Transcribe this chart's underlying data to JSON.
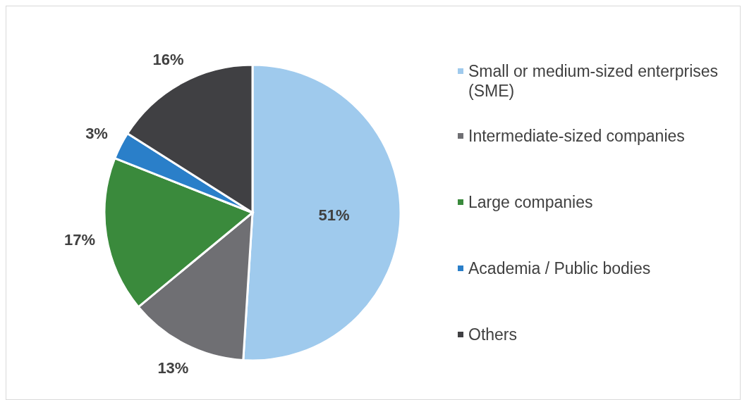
{
  "chart_data": {
    "type": "pie",
    "categories": [
      "Small or medium-sized enterprises (SME)",
      "Intermediate-sized companies",
      "Large companies",
      "Academia / Public bodies",
      "Others"
    ],
    "values": [
      51,
      13,
      17,
      3,
      16
    ],
    "colors": [
      "#9fcaed",
      "#6f6f73",
      "#3a8a3c",
      "#2a7fc9",
      "#404043"
    ],
    "value_labels": [
      "51%",
      "13%",
      "17%",
      "3%",
      "16%"
    ],
    "legend": "right"
  }
}
